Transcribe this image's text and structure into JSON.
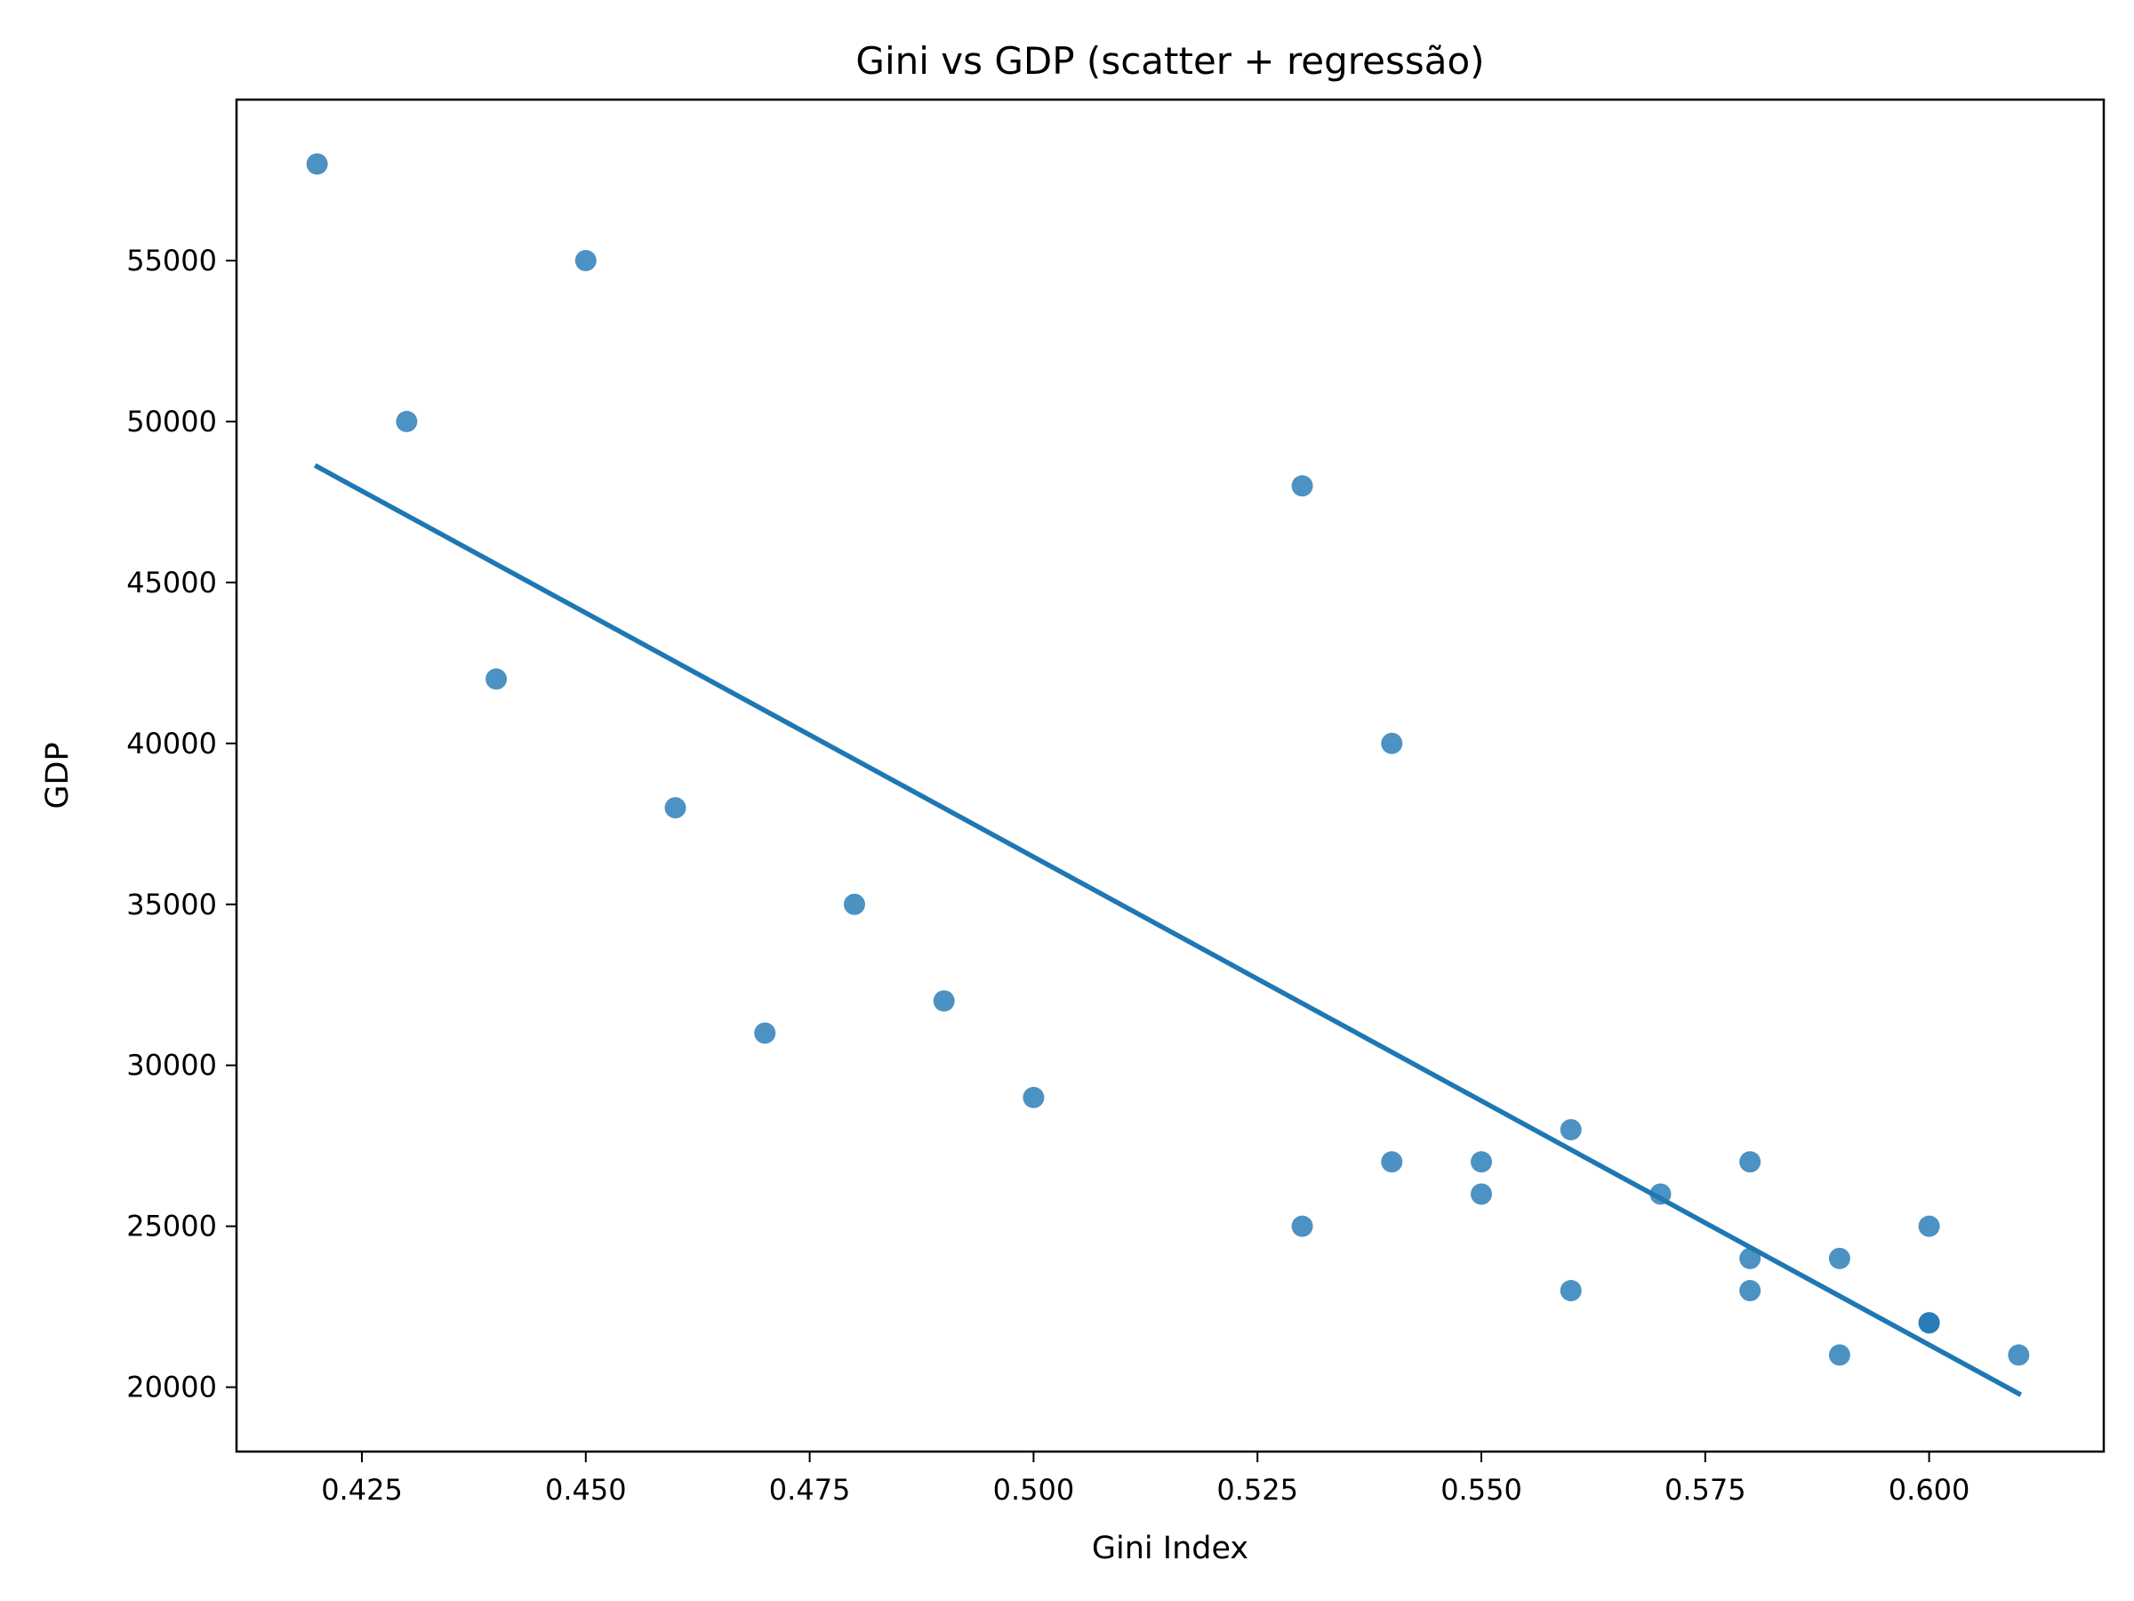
{
  "chart_data": {
    "type": "scatter",
    "title": "Gini vs GDP (scatter + regressão)",
    "xlabel": "Gini Index",
    "ylabel": "GDP",
    "xlim": [
      0.411,
      0.6195
    ],
    "ylim": [
      18000,
      60000
    ],
    "xticks": [
      0.425,
      0.45,
      0.475,
      0.5,
      0.525,
      0.55,
      0.575,
      0.6
    ],
    "xtick_labels": [
      "0.425",
      "0.450",
      "0.475",
      "0.500",
      "0.525",
      "0.550",
      "0.575",
      "0.600"
    ],
    "yticks": [
      20000,
      25000,
      30000,
      35000,
      40000,
      45000,
      50000,
      55000
    ],
    "ytick_labels": [
      "20000",
      "25000",
      "30000",
      "35000",
      "40000",
      "45000",
      "50000",
      "55000"
    ],
    "grid": false,
    "colors": {
      "points": "#1f77b4",
      "line": "#1f77b4",
      "axes": "#000000"
    },
    "points": [
      {
        "x": 0.42,
        "y": 58000
      },
      {
        "x": 0.43,
        "y": 50000
      },
      {
        "x": 0.44,
        "y": 42000
      },
      {
        "x": 0.45,
        "y": 55000
      },
      {
        "x": 0.46,
        "y": 38000
      },
      {
        "x": 0.47,
        "y": 31000
      },
      {
        "x": 0.48,
        "y": 35000
      },
      {
        "x": 0.49,
        "y": 32000
      },
      {
        "x": 0.5,
        "y": 29000
      },
      {
        "x": 0.53,
        "y": 48000
      },
      {
        "x": 0.53,
        "y": 25000
      },
      {
        "x": 0.54,
        "y": 40000
      },
      {
        "x": 0.54,
        "y": 27000
      },
      {
        "x": 0.55,
        "y": 27000
      },
      {
        "x": 0.55,
        "y": 26000
      },
      {
        "x": 0.56,
        "y": 28000
      },
      {
        "x": 0.56,
        "y": 23000
      },
      {
        "x": 0.57,
        "y": 26000
      },
      {
        "x": 0.58,
        "y": 27000
      },
      {
        "x": 0.58,
        "y": 24000
      },
      {
        "x": 0.58,
        "y": 23000
      },
      {
        "x": 0.59,
        "y": 24000
      },
      {
        "x": 0.59,
        "y": 21000
      },
      {
        "x": 0.6,
        "y": 25000
      },
      {
        "x": 0.6,
        "y": 22000
      },
      {
        "x": 0.6,
        "y": 22000
      },
      {
        "x": 0.61,
        "y": 21000
      }
    ],
    "regression": {
      "x": [
        0.42,
        0.61
      ],
      "y": [
        48600,
        19800
      ]
    }
  }
}
